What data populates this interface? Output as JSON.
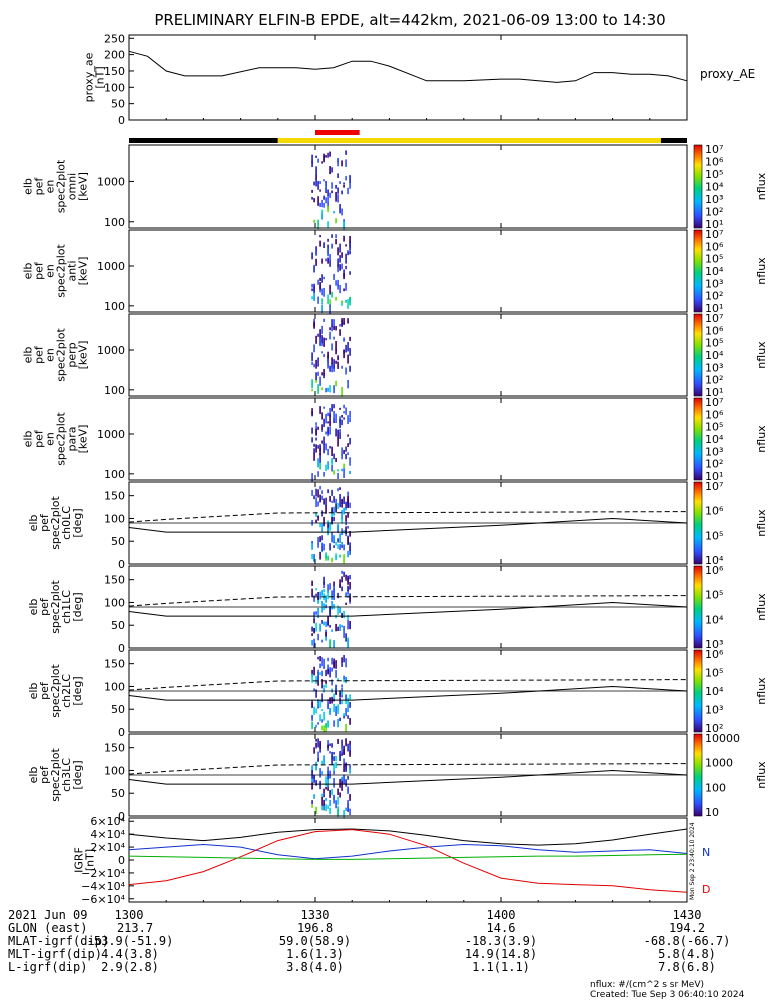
{
  "title": "PRELIMINARY ELFIN-B EPDE, alt=442km, 2021-06-09 13:00 to 14:30",
  "time_axis": {
    "date_label": "2021 Jun 09",
    "ticks": [
      "1300",
      "1330",
      "1400",
      "1430"
    ]
  },
  "ephemeris": [
    {
      "label": "GLON (east)",
      "values": [
        "213.7",
        "196.8",
        "14.6",
        "194.2"
      ]
    },
    {
      "label": "MLAT-igrf(dip)",
      "values": [
        "-53.9(-51.9)",
        "59.0(58.9)",
        "-18.3(3.9)",
        "-68.8(-66.7)"
      ]
    },
    {
      "label": "MLT-igrf(dip)",
      "values": [
        "4.4(3.8)",
        "1.6(1.3)",
        "14.9(14.8)",
        "5.8(4.8)"
      ]
    },
    {
      "label": "L-igrf(dip)",
      "values": [
        "2.9(2.8)",
        "3.8(4.0)",
        "1.1(1.1)",
        "7.8(6.8)"
      ]
    }
  ],
  "footer": {
    "units": "nflux: #/(cm^2 s sr MeV)",
    "created": "Created: Tue Sep  3 06:40:10 2024",
    "side_stamp": "Mon Sep  2 23:40:10 2024"
  },
  "colors": {
    "bar_black": "#000000",
    "bar_yellow": "#f5d800",
    "bar_red": "#ee0000",
    "grf_x": "#000000",
    "grf_y": "#1030d0",
    "grf_z": "#e00000",
    "grf_n": "#00b000"
  },
  "chart_data": [
    {
      "type": "line",
      "ylabel": [
        "proxy_ae",
        "[nT]"
      ],
      "yticks": [
        "250",
        "200",
        "150",
        "100",
        "50",
        "0"
      ],
      "ylim": [
        0,
        260
      ],
      "legend": "proxy_AE",
      "x": [
        13.0,
        13.05,
        13.1,
        13.15,
        13.25,
        13.35,
        13.45,
        13.5,
        13.55,
        13.6,
        13.65,
        13.7,
        13.8,
        13.9,
        14.0,
        14.05,
        14.15,
        14.2,
        14.25,
        14.3,
        14.35,
        14.4,
        14.45,
        14.5
      ],
      "values": [
        210,
        195,
        150,
        135,
        135,
        160,
        160,
        155,
        160,
        180,
        180,
        165,
        120,
        120,
        125,
        125,
        115,
        120,
        145,
        145,
        140,
        140,
        135,
        120
      ]
    },
    {
      "type": "heatmap",
      "bar_segments": [
        {
          "from": 13.0,
          "to": 13.4,
          "color": "black"
        },
        {
          "from": 13.4,
          "to": 14.43,
          "color": "yellow"
        },
        {
          "from": 14.43,
          "to": 14.5,
          "color": "black"
        }
      ],
      "highlight": {
        "from": 13.5,
        "to": 13.62,
        "color": "red"
      }
    },
    {
      "type": "heatmap",
      "panel": "omni",
      "ylabel": [
        "elb",
        "pef",
        "en",
        "spec2plot",
        "omni",
        "[keV]"
      ],
      "yticks": [
        "1000",
        "100"
      ],
      "scale": "log",
      "colorbar": {
        "label": "nflux",
        "ticks": [
          "10^7",
          "10^6",
          "10^5",
          "10^4",
          "10^3",
          "10^2",
          "10^1"
        ]
      },
      "active_interval": [
        13.49,
        13.6
      ]
    },
    {
      "type": "heatmap",
      "panel": "anti",
      "ylabel": [
        "elb",
        "pef",
        "en",
        "spec2plot",
        "anti",
        "[keV]"
      ],
      "yticks": [
        "1000",
        "100"
      ],
      "scale": "log",
      "colorbar": {
        "label": "nflux",
        "ticks": [
          "10^7",
          "10^6",
          "10^5",
          "10^4",
          "10^3",
          "10^2",
          "10^1"
        ]
      },
      "active_interval": [
        13.49,
        13.6
      ]
    },
    {
      "type": "heatmap",
      "panel": "perp",
      "ylabel": [
        "elb",
        "pef",
        "en",
        "spec2plot",
        "perp",
        "[keV]"
      ],
      "yticks": [
        "1000",
        "100"
      ],
      "scale": "log",
      "colorbar": {
        "label": "nflux",
        "ticks": [
          "10^7",
          "10^6",
          "10^5",
          "10^4",
          "10^3",
          "10^2",
          "10^1"
        ]
      },
      "active_interval": [
        13.49,
        13.6
      ]
    },
    {
      "type": "heatmap",
      "panel": "para",
      "ylabel": [
        "elb",
        "pef",
        "en",
        "spec2plot",
        "para",
        "[keV]"
      ],
      "yticks": [
        "1000",
        "100"
      ],
      "scale": "log",
      "colorbar": {
        "label": "nflux",
        "ticks": [
          "10^7",
          "10^6",
          "10^5",
          "10^4",
          "10^3",
          "10^2",
          "10^1"
        ]
      },
      "active_interval": [
        13.49,
        13.6
      ]
    },
    {
      "type": "heatmap",
      "panel": "ch0LC",
      "ylabel": [
        "elb",
        "pef",
        "spec2plot",
        "ch0LC",
        "[deg]"
      ],
      "yticks": [
        "150",
        "100",
        "50",
        "0"
      ],
      "ylim": [
        0,
        180
      ],
      "colorbar": {
        "label": "nflux",
        "ticks": [
          "10^7",
          "10^6",
          "10^5",
          "10^4"
        ]
      },
      "active_interval": [
        13.49,
        13.6
      ]
    },
    {
      "type": "heatmap",
      "panel": "ch1LC",
      "ylabel": [
        "elb",
        "pef",
        "spec2plot",
        "ch1LC",
        "[deg]"
      ],
      "yticks": [
        "150",
        "100",
        "50",
        "0"
      ],
      "ylim": [
        0,
        180
      ],
      "colorbar": {
        "label": "nflux",
        "ticks": [
          "10^6",
          "10^5",
          "10^4",
          "10^3"
        ]
      },
      "active_interval": [
        13.49,
        13.6
      ]
    },
    {
      "type": "heatmap",
      "panel": "ch2LC",
      "ylabel": [
        "elb",
        "pef",
        "spec2plot",
        "ch2LC",
        "[deg]"
      ],
      "yticks": [
        "150",
        "100",
        "50",
        "0"
      ],
      "ylim": [
        0,
        180
      ],
      "colorbar": {
        "label": "nflux",
        "ticks": [
          "10^6",
          "10^5",
          "10^4",
          "10^3",
          "10^2"
        ]
      },
      "active_interval": [
        13.49,
        13.6
      ]
    },
    {
      "type": "heatmap",
      "panel": "ch3LC",
      "ylabel": [
        "elb",
        "pef",
        "spec2plot",
        "ch3LC",
        "[deg]"
      ],
      "yticks": [
        "150",
        "100",
        "50",
        "0"
      ],
      "ylim": [
        0,
        180
      ],
      "colorbar": {
        "label": "nflux",
        "ticks": [
          "10000",
          "1000",
          "100",
          "10"
        ]
      },
      "active_interval": [
        13.49,
        13.6
      ]
    },
    {
      "type": "line",
      "ylabel": [
        "IGRF",
        "[nT]"
      ],
      "yticks": [
        "6×10^4",
        "4×10^4",
        "2×10^4",
        "0",
        "−2×10^4",
        "−4×10^4",
        "−6×10^4"
      ],
      "ylim": [
        -65000,
        65000
      ],
      "legend": [
        "N",
        "D"
      ],
      "x": [
        13.0,
        13.1,
        13.2,
        13.3,
        13.4,
        13.5,
        13.6,
        13.7,
        13.8,
        13.9,
        14.0,
        14.1,
        14.2,
        14.3,
        14.4,
        14.5
      ],
      "series": [
        {
          "values": [
            40000,
            34000,
            30000,
            35000,
            43000,
            47000,
            48000,
            45000,
            38000,
            30000,
            25000,
            23000,
            25000,
            31000,
            40000,
            48000
          ]
        },
        {
          "values": [
            16000,
            20000,
            24000,
            20000,
            8000,
            2000,
            6000,
            14000,
            20000,
            24000,
            22000,
            16000,
            12000,
            14000,
            16000,
            10000
          ]
        },
        {
          "values": [
            -38000,
            -32000,
            -18000,
            5000,
            30000,
            44000,
            47000,
            40000,
            22000,
            -5000,
            -28000,
            -36000,
            -38000,
            -40000,
            -46000,
            -50000
          ]
        },
        {
          "values": [
            6000,
            5000,
            4000,
            3000,
            2000,
            1000,
            1000,
            2000,
            3000,
            4000,
            5000,
            6000,
            6000,
            7000,
            8000,
            9000
          ]
        }
      ]
    }
  ]
}
